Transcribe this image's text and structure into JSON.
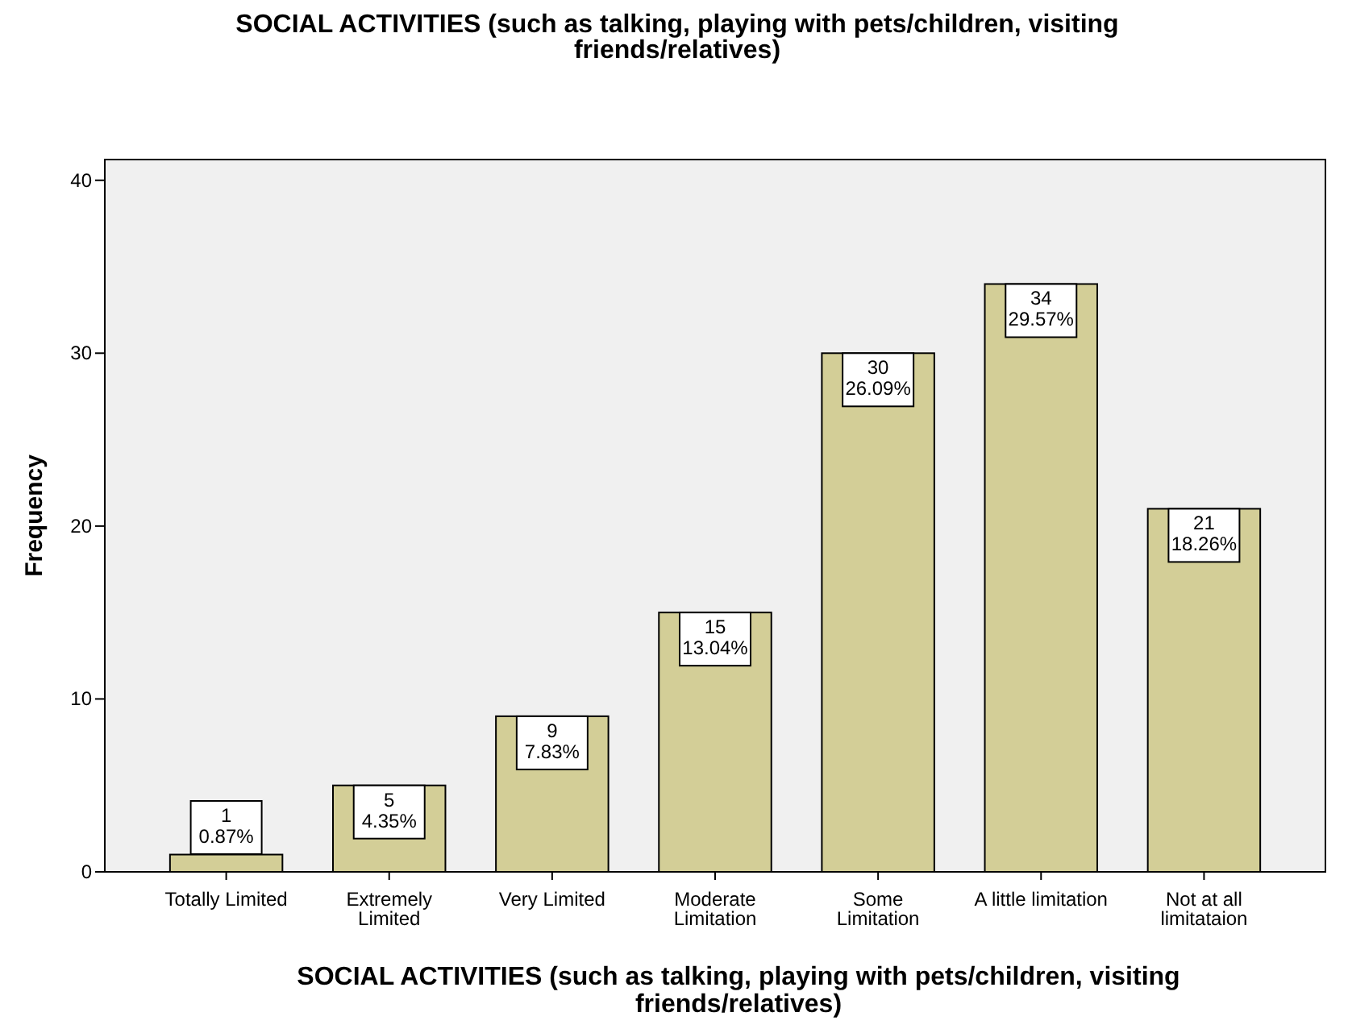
{
  "chart_data": {
    "type": "bar",
    "title": "SOCIAL ACTIVITIES (such as talking, playing with pets/children, visiting\nfriends/relatives)",
    "xlabel": "SOCIAL ACTIVITIES (such as talking, playing with pets/children, visiting\nfriends/relatives)",
    "ylabel": "Frequency",
    "categories": [
      "Totally Limited",
      "Extremely\nLimited",
      "Very Limited",
      "Moderate\nLimitation",
      "Some\nLimitation",
      "A little limitation",
      "Not at all\nlimitataion"
    ],
    "values": [
      1,
      5,
      9,
      15,
      30,
      34,
      21
    ],
    "value_labels": [
      "1\n0.87%",
      "5\n4.35%",
      "9\n7.83%",
      "15\n13.04%",
      "30\n26.09%",
      "34\n29.57%",
      "21\n18.26%"
    ],
    "color": "#d3ce97",
    "ylim": [
      0,
      41.2
    ],
    "yticks": [
      0,
      10,
      20,
      30,
      40
    ],
    "grid": false
  }
}
